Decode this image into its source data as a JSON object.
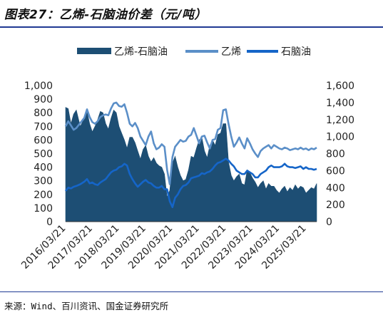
{
  "figure_title": "图表27：乙烯-石脑油价差（元/吨）",
  "source": "来源：Wind、百川资讯、国金证券研究所",
  "chart_data": {
    "type": "area",
    "xlabel": "",
    "ylabel_left": "",
    "ylabel_right": "",
    "ylim_left": [
      0,
      1000
    ],
    "ylim_right": [
      0,
      1600
    ],
    "yticks_left": [
      "0",
      "100",
      "200",
      "300",
      "400",
      "500",
      "600",
      "700",
      "800",
      "900",
      "1,000"
    ],
    "yticks_right": [
      "0",
      "200",
      "400",
      "600",
      "800",
      "1,000",
      "1,200",
      "1,400",
      "1,600"
    ],
    "xticks": [
      "2016/03/21",
      "2017/03/21",
      "2018/03/21",
      "2019/03/21",
      "2020/03/21",
      "2021/03/21",
      "2022/03/21",
      "2023/03/21",
      "2024/03/21",
      "2025/03/21"
    ],
    "x_range": [
      2016.2,
      2025.6
    ],
    "legend_position": "top",
    "series": [
      {
        "name": "乙烯-石脑油",
        "axis": "left",
        "kind": "area",
        "color": "#1d4e74",
        "x": [
          2016.2,
          2016.3,
          2016.4,
          2016.5,
          2016.6,
          2016.75,
          2016.9,
          2017.0,
          2017.1,
          2017.2,
          2017.3,
          2017.4,
          2017.5,
          2017.6,
          2017.7,
          2017.8,
          2017.9,
          2018.0,
          2018.1,
          2018.2,
          2018.3,
          2018.4,
          2018.5,
          2018.6,
          2018.7,
          2018.8,
          2018.9,
          2019.0,
          2019.1,
          2019.2,
          2019.3,
          2019.4,
          2019.5,
          2019.6,
          2019.7,
          2019.8,
          2019.9,
          2020.0,
          2020.1,
          2020.2,
          2020.3,
          2020.4,
          2020.5,
          2020.6,
          2020.7,
          2020.8,
          2020.9,
          2021.0,
          2021.1,
          2021.2,
          2021.3,
          2021.4,
          2021.5,
          2021.6,
          2021.7,
          2021.8,
          2021.9,
          2022.0,
          2022.1,
          2022.2,
          2022.3,
          2022.4,
          2022.5,
          2022.6,
          2022.7,
          2022.8,
          2022.9,
          2023.0,
          2023.1,
          2023.2,
          2023.3,
          2023.4,
          2023.5,
          2023.6,
          2023.7,
          2023.8,
          2023.9,
          2024.0,
          2024.1,
          2024.2,
          2024.3,
          2024.4,
          2024.5,
          2024.6,
          2024.7,
          2024.8,
          2024.9,
          2025.0,
          2025.1,
          2025.2,
          2025.3,
          2025.4,
          2025.5,
          2025.6
        ],
        "values": [
          840,
          830,
          720,
          790,
          820,
          700,
          760,
          810,
          720,
          660,
          700,
          750,
          810,
          800,
          720,
          680,
          760,
          820,
          800,
          700,
          650,
          600,
          540,
          620,
          620,
          580,
          520,
          460,
          530,
          560,
          480,
          440,
          470,
          430,
          410,
          400,
          350,
          180,
          230,
          430,
          480,
          400,
          340,
          300,
          310,
          380,
          480,
          470,
          540,
          600,
          620,
          520,
          470,
          560,
          600,
          560,
          640,
          650,
          720,
          720,
          440,
          340,
          300,
          330,
          350,
          280,
          270,
          380,
          360,
          320,
          290,
          250,
          280,
          300,
          240,
          280,
          260,
          260,
          230,
          210,
          240,
          260,
          220,
          250,
          230,
          270,
          240,
          260,
          250,
          210,
          230,
          250,
          240,
          280
        ]
      },
      {
        "name": "乙烯",
        "axis": "right",
        "kind": "line",
        "color": "#5b8fc8",
        "x": [
          2016.2,
          2016.3,
          2016.4,
          2016.5,
          2016.6,
          2016.75,
          2016.9,
          2017.0,
          2017.1,
          2017.2,
          2017.3,
          2017.4,
          2017.5,
          2017.6,
          2017.7,
          2017.8,
          2017.9,
          2018.0,
          2018.1,
          2018.2,
          2018.3,
          2018.4,
          2018.5,
          2018.6,
          2018.7,
          2018.8,
          2018.9,
          2019.0,
          2019.1,
          2019.2,
          2019.3,
          2019.4,
          2019.5,
          2019.6,
          2019.7,
          2019.8,
          2019.9,
          2020.0,
          2020.1,
          2020.2,
          2020.3,
          2020.4,
          2020.5,
          2020.6,
          2020.7,
          2020.8,
          2020.9,
          2021.0,
          2021.1,
          2021.2,
          2021.3,
          2021.4,
          2021.5,
          2021.6,
          2021.7,
          2021.8,
          2021.9,
          2022.0,
          2022.1,
          2022.2,
          2022.3,
          2022.4,
          2022.5,
          2022.6,
          2022.7,
          2022.8,
          2022.9,
          2023.0,
          2023.1,
          2023.2,
          2023.3,
          2023.4,
          2023.5,
          2023.6,
          2023.7,
          2023.8,
          2023.9,
          2024.0,
          2024.1,
          2024.2,
          2024.3,
          2024.4,
          2024.5,
          2024.6,
          2024.7,
          2024.8,
          2024.9,
          2025.0,
          2025.1,
          2025.2,
          2025.3,
          2025.4,
          2025.5,
          2025.6
        ],
        "values": [
          1120,
          1180,
          1130,
          1080,
          1100,
          1160,
          1220,
          1320,
          1230,
          1170,
          1150,
          1180,
          1230,
          1250,
          1260,
          1250,
          1330,
          1390,
          1400,
          1360,
          1350,
          1380,
          1280,
          1150,
          1120,
          1160,
          1100,
          1000,
          950,
          900,
          1000,
          1060,
          920,
          850,
          870,
          910,
          880,
          610,
          440,
          760,
          880,
          920,
          960,
          940,
          950,
          1000,
          1020,
          1100,
          1010,
          920,
          1000,
          1010,
          930,
          860,
          960,
          970,
          1080,
          1100,
          1310,
          1320,
          1150,
          1000,
          880,
          930,
          990,
          920,
          860,
          980,
          920,
          850,
          800,
          760,
          830,
          860,
          880,
          900,
          860,
          900,
          880,
          860,
          850,
          870,
          860,
          840,
          850,
          860,
          850,
          870,
          850,
          860,
          840,
          860,
          850,
          870
        ]
      },
      {
        "name": "石脑油",
        "axis": "right",
        "kind": "line",
        "color": "#1565c8",
        "x": [
          2016.2,
          2016.3,
          2016.4,
          2016.5,
          2016.6,
          2016.75,
          2016.9,
          2017.0,
          2017.1,
          2017.2,
          2017.3,
          2017.4,
          2017.5,
          2017.6,
          2017.7,
          2017.8,
          2017.9,
          2018.0,
          2018.1,
          2018.2,
          2018.3,
          2018.4,
          2018.5,
          2018.6,
          2018.7,
          2018.8,
          2018.9,
          2019.0,
          2019.1,
          2019.2,
          2019.3,
          2019.4,
          2019.5,
          2019.6,
          2019.7,
          2019.8,
          2019.9,
          2020.0,
          2020.1,
          2020.2,
          2020.3,
          2020.4,
          2020.5,
          2020.6,
          2020.7,
          2020.8,
          2020.9,
          2021.0,
          2021.1,
          2021.2,
          2021.3,
          2021.4,
          2021.5,
          2021.6,
          2021.7,
          2021.8,
          2021.9,
          2022.0,
          2022.1,
          2022.2,
          2022.3,
          2022.4,
          2022.5,
          2022.6,
          2022.7,
          2022.8,
          2022.9,
          2023.0,
          2023.1,
          2023.2,
          2023.3,
          2023.4,
          2023.5,
          2023.6,
          2023.7,
          2023.8,
          2023.9,
          2024.0,
          2024.1,
          2024.2,
          2024.3,
          2024.4,
          2024.5,
          2024.6,
          2024.7,
          2024.8,
          2024.9,
          2025.0,
          2025.1,
          2025.2,
          2025.3,
          2025.4,
          2025.5,
          2025.6
        ],
        "values": [
          360,
          400,
          390,
          410,
          420,
          440,
          470,
          500,
          450,
          460,
          440,
          430,
          460,
          480,
          500,
          540,
          580,
          600,
          610,
          640,
          650,
          680,
          660,
          560,
          500,
          450,
          410,
          440,
          470,
          490,
          460,
          450,
          420,
          400,
          400,
          420,
          380,
          380,
          240,
          170,
          280,
          320,
          380,
          420,
          430,
          460,
          510,
          520,
          530,
          540,
          570,
          560,
          580,
          590,
          620,
          660,
          690,
          700,
          720,
          740,
          720,
          680,
          650,
          600,
          580,
          560,
          560,
          600,
          580,
          560,
          520,
          520,
          560,
          580,
          600,
          640,
          660,
          640,
          640,
          640,
          650,
          680,
          650,
          640,
          640,
          630,
          640,
          650,
          620,
          640,
          620,
          620,
          610,
          620
        ]
      }
    ]
  }
}
